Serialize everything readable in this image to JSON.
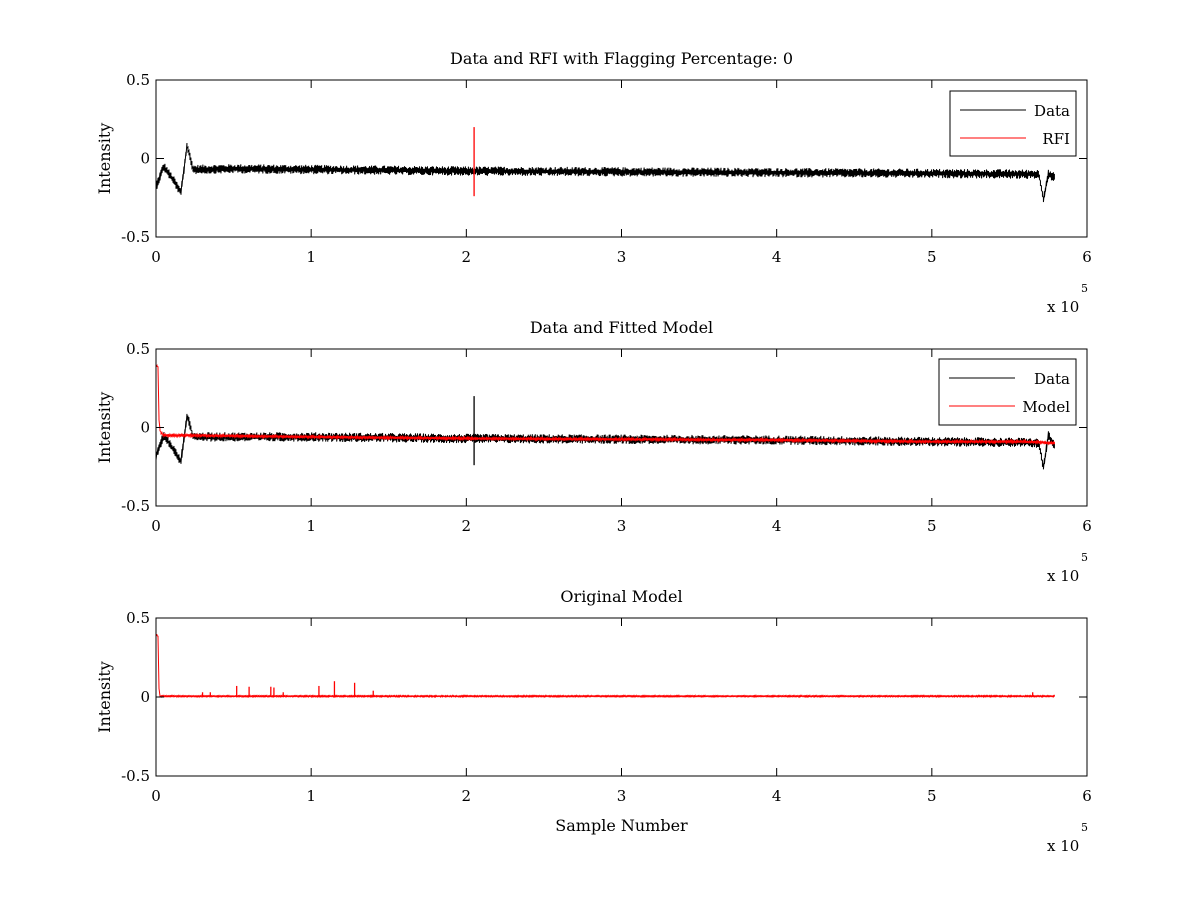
{
  "figure": {
    "background": "#ffffff"
  },
  "chart_data": [
    {
      "type": "line",
      "title": "Data and RFI with Flagging Percentage: 0",
      "xlabel": "",
      "ylabel": "Intensity",
      "xlim": [
        0,
        6
      ],
      "ylim": [
        -0.5,
        0.5
      ],
      "x_ticks": [
        "0",
        "1",
        "2",
        "3",
        "4",
        "5",
        "6"
      ],
      "y_ticks": [
        "-0.5",
        "0",
        "0.5"
      ],
      "x_multiplier": {
        "base": "x 10",
        "exponent": "5"
      },
      "legend": {
        "position": "top-right",
        "entries": [
          {
            "label": "Data",
            "color": "#000000"
          },
          {
            "label": "RFI",
            "color": "#ff0000"
          }
        ]
      },
      "series": [
        {
          "name": "Data",
          "color": "#000000",
          "x": [
            0,
            0.05,
            0.12,
            0.16,
            0.2,
            0.24,
            0.5,
            1.0,
            2.0,
            3.0,
            4.0,
            5.0,
            5.6,
            5.69,
            5.72,
            5.75,
            5.79
          ],
          "y": [
            -0.18,
            -0.05,
            -0.15,
            -0.22,
            0.08,
            -0.07,
            -0.065,
            -0.07,
            -0.08,
            -0.085,
            -0.09,
            -0.095,
            -0.1,
            -0.1,
            -0.26,
            -0.1,
            -0.12
          ],
          "band": 0.03
        },
        {
          "name": "RFI",
          "color": "#ff0000",
          "spikes": [
            {
              "x": 2.05,
              "y_min": -0.24,
              "y_max": 0.2
            }
          ]
        }
      ]
    },
    {
      "type": "line",
      "title": "Data and Fitted Model",
      "xlabel": "",
      "ylabel": "Intensity",
      "xlim": [
        0,
        6
      ],
      "ylim": [
        -0.5,
        0.5
      ],
      "x_ticks": [
        "0",
        "1",
        "2",
        "3",
        "4",
        "5",
        "6"
      ],
      "y_ticks": [
        "-0.5",
        "0",
        "0.5"
      ],
      "x_multiplier": {
        "base": "x 10",
        "exponent": "5"
      },
      "legend": {
        "position": "top-right",
        "entries": [
          {
            "label": "Data",
            "color": "#000000"
          },
          {
            "label": "Model",
            "color": "#ff0000"
          }
        ]
      },
      "series": [
        {
          "name": "Data",
          "color": "#000000",
          "x": [
            0,
            0.05,
            0.12,
            0.16,
            0.2,
            0.24,
            0.5,
            1.0,
            2.0,
            3.0,
            4.0,
            5.0,
            5.6,
            5.69,
            5.72,
            5.75,
            5.79
          ],
          "y": [
            -0.18,
            -0.05,
            -0.15,
            -0.22,
            0.08,
            -0.06,
            -0.06,
            -0.06,
            -0.07,
            -0.075,
            -0.08,
            -0.09,
            -0.095,
            -0.1,
            -0.26,
            -0.05,
            -0.12
          ],
          "band": 0.03,
          "spikes": [
            {
              "x": 2.05,
              "y_min": -0.24,
              "y_max": 0.2
            }
          ]
        },
        {
          "name": "Model",
          "color": "#ff0000",
          "x": [
            0,
            0.015,
            0.02,
            0.03,
            0.05,
            0.2,
            1.0,
            2.0,
            3.0,
            4.0,
            5.0,
            5.6,
            5.79
          ],
          "y": [
            0.4,
            0.38,
            0.0,
            -0.03,
            -0.05,
            -0.05,
            -0.06,
            -0.07,
            -0.075,
            -0.08,
            -0.09,
            -0.09,
            -0.1
          ],
          "band": 0.008
        }
      ]
    },
    {
      "type": "line",
      "title": "Original Model",
      "xlabel": "Sample Number",
      "ylabel": "Intensity",
      "xlim": [
        0,
        6
      ],
      "ylim": [
        -0.5,
        0.5
      ],
      "x_ticks": [
        "0",
        "1",
        "2",
        "3",
        "4",
        "5",
        "6"
      ],
      "y_ticks": [
        "-0.5",
        "0",
        "0.5"
      ],
      "x_multiplier": {
        "base": "x 10",
        "exponent": "5"
      },
      "series": [
        {
          "name": "Model",
          "color": "#ff0000",
          "x": [
            0,
            0.015,
            0.02,
            0.03,
            1.0,
            2.0,
            3.0,
            4.0,
            5.0,
            5.79
          ],
          "y": [
            0.4,
            0.38,
            0.005,
            0.005,
            0.005,
            0.005,
            0.005,
            0.005,
            0.005,
            0.005
          ],
          "band": 0.004,
          "spikes": [
            {
              "x": 0.3,
              "y_min": 0.0,
              "y_max": 0.03
            },
            {
              "x": 0.35,
              "y_min": 0.0,
              "y_max": 0.03
            },
            {
              "x": 0.52,
              "y_min": 0.0,
              "y_max": 0.07
            },
            {
              "x": 0.6,
              "y_min": 0.0,
              "y_max": 0.065
            },
            {
              "x": 0.74,
              "y_min": 0.0,
              "y_max": 0.065
            },
            {
              "x": 0.76,
              "y_min": 0.0,
              "y_max": 0.06
            },
            {
              "x": 0.82,
              "y_min": 0.0,
              "y_max": 0.03
            },
            {
              "x": 1.05,
              "y_min": 0.0,
              "y_max": 0.07
            },
            {
              "x": 1.15,
              "y_min": 0.0,
              "y_max": 0.1
            },
            {
              "x": 1.28,
              "y_min": 0.0,
              "y_max": 0.09
            },
            {
              "x": 1.4,
              "y_min": 0.0,
              "y_max": 0.04
            },
            {
              "x": 5.65,
              "y_min": 0.0,
              "y_max": 0.03
            }
          ]
        }
      ]
    }
  ]
}
